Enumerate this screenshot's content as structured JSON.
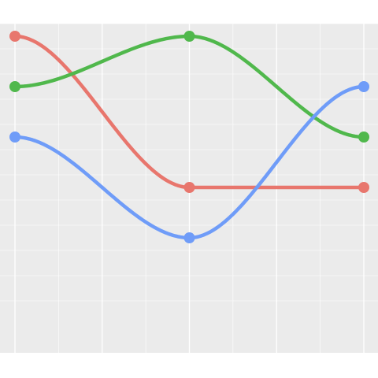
{
  "chart_data": {
    "type": "line",
    "subtype": "bump",
    "x": [
      1,
      2,
      3
    ],
    "series": [
      {
        "values": [
          1,
          4,
          4
        ],
        "color": "#E8766D"
      },
      {
        "values": [
          2,
          1,
          3
        ],
        "color": "#50B84C"
      },
      {
        "values": [
          3,
          5,
          2
        ],
        "color": "#6F9CF8"
      }
    ],
    "ylim": [
      5,
      1
    ],
    "grid": true,
    "legend": "none",
    "title": "",
    "xlabel": "",
    "ylabel": "",
    "panel_background": "#EBEBEB",
    "grid_color": "#FFFFFF"
  }
}
